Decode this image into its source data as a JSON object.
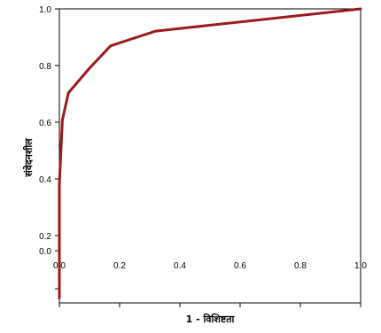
{
  "chart_data": {
    "type": "line",
    "xlabel": "1 - विशिष्टता",
    "ylabel": "संवेदनशील",
    "xlim": [
      0,
      1
    ],
    "ylim": [
      0,
      1
    ],
    "x_ticks": [
      "0.0",
      "0.2",
      "0.4",
      "0.6",
      "0.8",
      "1.0"
    ],
    "y_ticks": [
      "0.0",
      "0.2",
      "0.4",
      "0.6",
      "0.8",
      "1.0"
    ],
    "grid": false,
    "series": [
      {
        "color": "#9b1b1b",
        "x": [
          0.0,
          0.0,
          0.01,
          0.03,
          0.1,
          0.17,
          0.32,
          1.0
        ],
        "y": [
          -0.17,
          0.29,
          0.55,
          0.66,
          0.76,
          0.85,
          0.91,
          1.0
        ]
      }
    ]
  }
}
